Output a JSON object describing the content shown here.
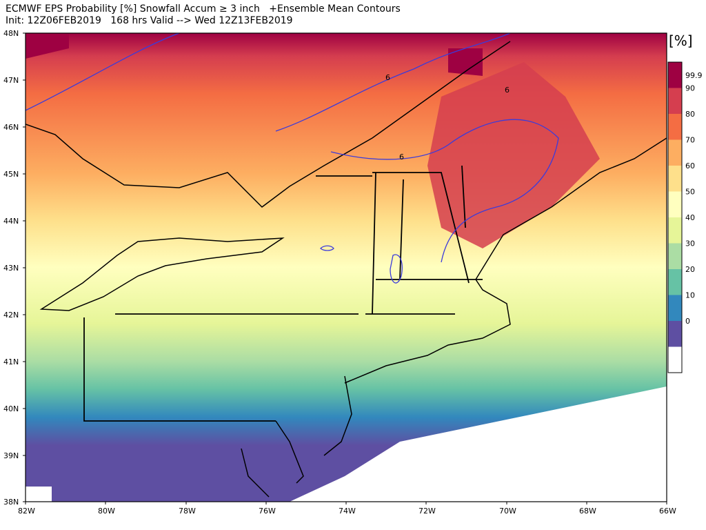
{
  "title": {
    "line1": "ECMWF EPS Probability [%] Snowfall Accum ≥ 3 inch   +Ensemble Mean Contours",
    "line2": "Init: 12Z06FEB2019   168 hrs Valid --> Wed 12Z13FEB2019"
  },
  "map": {
    "lat_labels": [
      "48N",
      "47N",
      "46N",
      "45N",
      "44N",
      "43N",
      "42N",
      "41N",
      "40N",
      "39N",
      "38N"
    ],
    "lon_labels": [
      "82W",
      "80W",
      "78W",
      "76W",
      "74W",
      "72W",
      "70W",
      "68W",
      "66W"
    ],
    "contour_label": "6",
    "contour_color": "#3b3bdb"
  },
  "colorbar": {
    "unit": "[%]",
    "labels": [
      "99.9",
      "90",
      "80",
      "70",
      "60",
      "50",
      "40",
      "30",
      "20",
      "10",
      "0"
    ],
    "colors": [
      "#9e0142",
      "#d53e4f",
      "#f46d43",
      "#fdae61",
      "#fee08b",
      "#ffffbf",
      "#e6f598",
      "#abdda4",
      "#66c2a5",
      "#3288bd",
      "#5e4fa2",
      "#ffffff"
    ]
  }
}
